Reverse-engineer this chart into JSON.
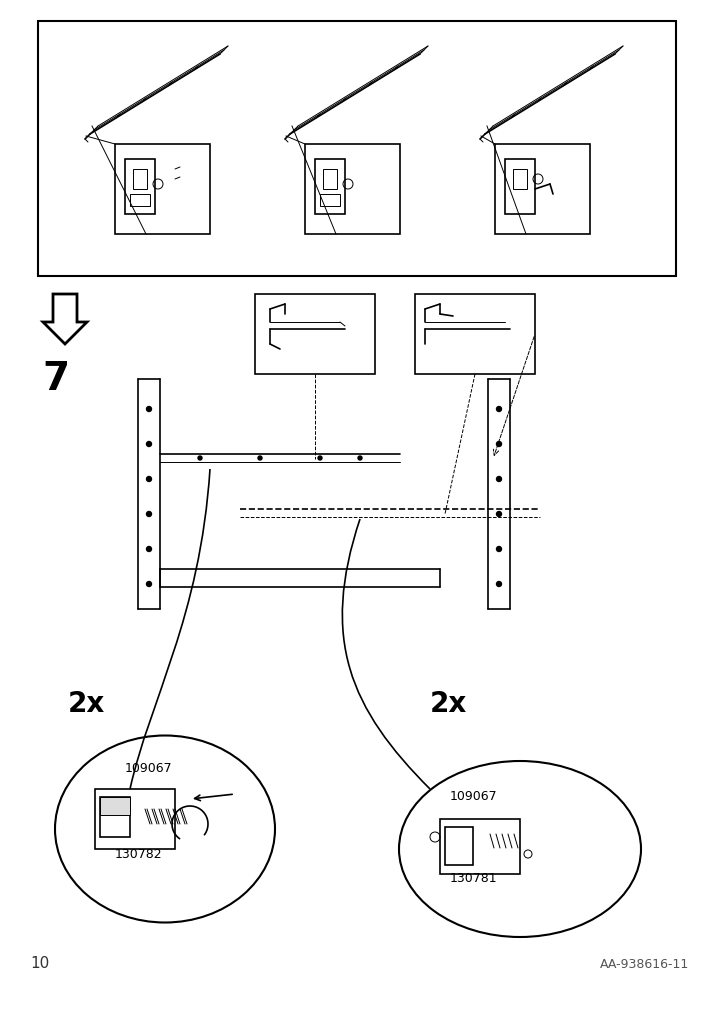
{
  "bg_color": "#ffffff",
  "page_number": "10",
  "article_number": "AA-938616-11",
  "step_number": "7",
  "quantity_labels": [
    "2x",
    "2x"
  ],
  "part_numbers_left": [
    "109067",
    "130782"
  ],
  "part_numbers_right": [
    "109067",
    "130781"
  ],
  "line_color": "#000000",
  "border_color": "#000000",
  "font_size_step": 28,
  "font_size_page": 11,
  "font_size_article": 9,
  "font_size_qty": 20,
  "font_size_part": 9
}
